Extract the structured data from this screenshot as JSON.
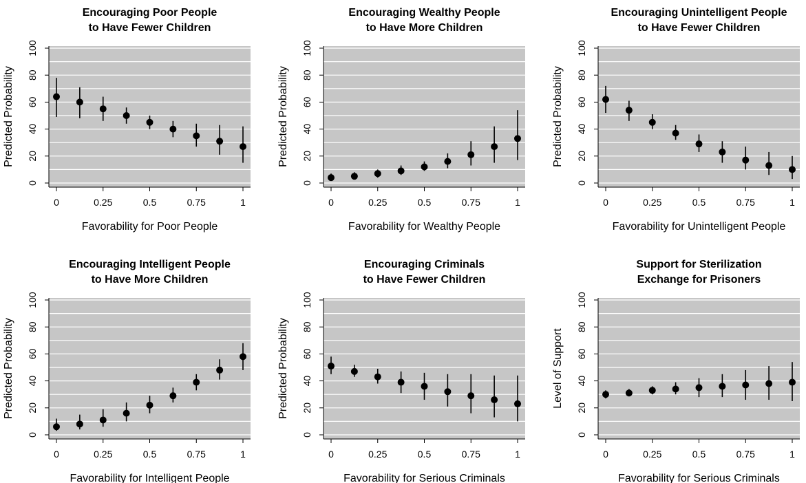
{
  "chart_data": [
    {
      "type": "scatter",
      "title": [
        "Encouraging Poor People",
        "to Have Fewer Children"
      ],
      "xlabel": "Favorability for Poor People",
      "ylabel": "Predicted Probability",
      "xlim": [
        0,
        1
      ],
      "ylim": [
        0,
        100
      ],
      "xticks": [
        0,
        0.25,
        0.5,
        0.75,
        1
      ],
      "xtick_labels": [
        "0",
        "0.25",
        "0.5",
        "0.75",
        "1"
      ],
      "yticks": [
        0,
        20,
        40,
        60,
        80,
        100
      ],
      "ytick_labels": [
        "0",
        "20",
        "40",
        "60",
        "80",
        "100"
      ],
      "grid": true,
      "x": [
        0,
        0.125,
        0.25,
        0.375,
        0.5,
        0.625,
        0.75,
        0.875,
        1
      ],
      "y": [
        64,
        60,
        55,
        50,
        45,
        40,
        35,
        31,
        27
      ],
      "ci_low": [
        49,
        48,
        46,
        44,
        40,
        34,
        27,
        21,
        15
      ],
      "ci_high": [
        78,
        71,
        64,
        56,
        50,
        46,
        44,
        43,
        42
      ]
    },
    {
      "type": "scatter",
      "title": [
        "Encouraging Wealthy People",
        "to Have More Children"
      ],
      "xlabel": "Favorability for Wealthy People",
      "ylabel": "Predicted Probability",
      "xlim": [
        0,
        1
      ],
      "ylim": [
        0,
        100
      ],
      "xticks": [
        0,
        0.25,
        0.5,
        0.75,
        1
      ],
      "xtick_labels": [
        "0",
        "0.25",
        "0.5",
        "0.75",
        "1"
      ],
      "yticks": [
        0,
        20,
        40,
        60,
        80,
        100
      ],
      "ytick_labels": [
        "0",
        "20",
        "40",
        "60",
        "80",
        "100"
      ],
      "grid": true,
      "x": [
        0,
        0.125,
        0.25,
        0.375,
        0.5,
        0.625,
        0.75,
        0.875,
        1
      ],
      "y": [
        4,
        5,
        7,
        9,
        12,
        16,
        21,
        27,
        33
      ],
      "ci_low": [
        2,
        3,
        4,
        6,
        9,
        11,
        13,
        15,
        17
      ],
      "ci_high": [
        7,
        8,
        10,
        13,
        16,
        22,
        31,
        42,
        54
      ]
    },
    {
      "type": "scatter",
      "title": [
        "Encouraging Unintelligent People",
        "to Have Fewer Children"
      ],
      "xlabel": "Favorability for Unintelligent People",
      "ylabel": "Predicted Probability",
      "xlim": [
        0,
        1
      ],
      "ylim": [
        0,
        100
      ],
      "xticks": [
        0,
        0.25,
        0.5,
        0.75,
        1
      ],
      "xtick_labels": [
        "0",
        "0.25",
        "0.5",
        "0.75",
        "1"
      ],
      "yticks": [
        0,
        20,
        40,
        60,
        80,
        100
      ],
      "ytick_labels": [
        "0",
        "20",
        "40",
        "60",
        "80",
        "100"
      ],
      "grid": true,
      "x": [
        0,
        0.125,
        0.25,
        0.375,
        0.5,
        0.625,
        0.75,
        0.875,
        1
      ],
      "y": [
        62,
        54,
        45,
        37,
        29,
        23,
        17,
        13,
        10
      ],
      "ci_low": [
        52,
        46,
        40,
        32,
        23,
        15,
        10,
        6,
        3
      ],
      "ci_high": [
        72,
        61,
        51,
        43,
        36,
        31,
        27,
        23,
        20
      ]
    },
    {
      "type": "scatter",
      "title": [
        "Encouraging Intelligent People",
        "to Have More Children"
      ],
      "xlabel": "Favorability for Intelligent People",
      "ylabel": "Predicted Probability",
      "xlim": [
        0,
        1
      ],
      "ylim": [
        0,
        100
      ],
      "xticks": [
        0,
        0.25,
        0.5,
        0.75,
        1
      ],
      "xtick_labels": [
        "0",
        "0.25",
        "0.5",
        "0.75",
        "1"
      ],
      "yticks": [
        0,
        20,
        40,
        60,
        80,
        100
      ],
      "ytick_labels": [
        "0",
        "20",
        "40",
        "60",
        "80",
        "100"
      ],
      "grid": true,
      "x": [
        0,
        0.125,
        0.25,
        0.375,
        0.5,
        0.625,
        0.75,
        0.875,
        1
      ],
      "y": [
        6,
        8,
        11,
        16,
        22,
        29,
        39,
        48,
        58
      ],
      "ci_low": [
        3,
        4,
        6,
        10,
        16,
        24,
        33,
        41,
        48
      ],
      "ci_high": [
        12,
        15,
        19,
        24,
        29,
        35,
        45,
        56,
        68
      ]
    },
    {
      "type": "scatter",
      "title": [
        "Encouraging Criminals",
        "to Have Fewer Children"
      ],
      "xlabel": "Favorability for Serious Criminals",
      "ylabel": "Predicted Probability",
      "xlim": [
        0,
        1
      ],
      "ylim": [
        0,
        100
      ],
      "xticks": [
        0,
        0.25,
        0.5,
        0.75,
        1
      ],
      "xtick_labels": [
        "0",
        "0.25",
        "0.5",
        "0.75",
        "1"
      ],
      "yticks": [
        0,
        20,
        40,
        60,
        80,
        100
      ],
      "ytick_labels": [
        "0",
        "20",
        "40",
        "60",
        "80",
        "100"
      ],
      "grid": true,
      "x": [
        0,
        0.125,
        0.25,
        0.375,
        0.5,
        0.625,
        0.75,
        0.875,
        1
      ],
      "y": [
        51,
        47,
        43,
        39,
        36,
        32,
        29,
        26,
        23
      ],
      "ci_low": [
        45,
        43,
        38,
        31,
        26,
        21,
        16,
        13,
        10
      ],
      "ci_high": [
        58,
        52,
        49,
        47,
        46,
        45,
        45,
        44,
        44
      ]
    },
    {
      "type": "scatter",
      "title": [
        "Support for Sterilization",
        "Exchange for Prisoners"
      ],
      "xlabel": "Favorability for Serious Criminals",
      "ylabel": "Level of Support",
      "xlim": [
        0,
        1
      ],
      "ylim": [
        0,
        100
      ],
      "xticks": [
        0,
        0.25,
        0.5,
        0.75,
        1
      ],
      "xtick_labels": [
        "0",
        "0.25",
        "0.5",
        "0.75",
        "1"
      ],
      "yticks": [
        0,
        20,
        40,
        60,
        80,
        100
      ],
      "ytick_labels": [
        "0",
        "20",
        "40",
        "60",
        "80",
        "100"
      ],
      "grid": true,
      "x": [
        0,
        0.125,
        0.25,
        0.375,
        0.5,
        0.625,
        0.75,
        0.875,
        1
      ],
      "y": [
        30,
        31,
        33,
        34,
        35,
        36,
        37,
        38,
        39
      ],
      "ci_low": [
        27,
        29,
        30,
        30,
        28,
        28,
        26,
        26,
        25
      ],
      "ci_high": [
        33,
        34,
        36,
        39,
        42,
        45,
        48,
        51,
        54
      ]
    }
  ]
}
